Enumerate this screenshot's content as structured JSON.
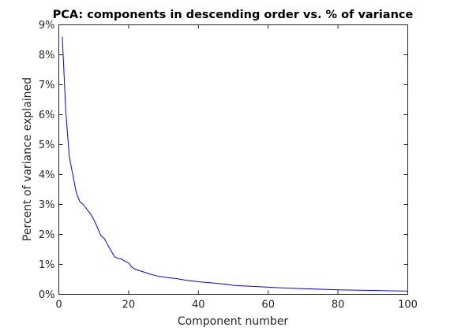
{
  "chart_data": {
    "type": "line",
    "title": "PCA: components in descending order vs. % of variance",
    "xlabel": "Component number",
    "ylabel": "Percent of variance explained",
    "xlim": [
      0,
      100
    ],
    "ylim": [
      0,
      9
    ],
    "xticks": [
      0,
      20,
      40,
      60,
      80,
      100
    ],
    "yticks": [
      0,
      1,
      2,
      3,
      4,
      5,
      6,
      7,
      8,
      9
    ],
    "ytick_suffix": "%",
    "grid": false,
    "line_color": "#0000ff",
    "series": [
      {
        "x": [
          1,
          2,
          3,
          4,
          5,
          6,
          7,
          8,
          9,
          10,
          11,
          12,
          13,
          14,
          15,
          16,
          17,
          18,
          19,
          20,
          21,
          22,
          24,
          26,
          28,
          30,
          32,
          34,
          36,
          38,
          40,
          42,
          44,
          46,
          48,
          50,
          55,
          60,
          65,
          70,
          75,
          80,
          85,
          90,
          95,
          100
        ],
        "values": [
          8.6,
          6.1,
          4.6,
          4.0,
          3.4,
          3.1,
          3.0,
          2.85,
          2.7,
          2.5,
          2.25,
          1.97,
          1.87,
          1.65,
          1.45,
          1.25,
          1.2,
          1.18,
          1.1,
          1.05,
          0.9,
          0.83,
          0.76,
          0.68,
          0.62,
          0.58,
          0.55,
          0.52,
          0.48,
          0.45,
          0.42,
          0.4,
          0.38,
          0.36,
          0.34,
          0.3,
          0.27,
          0.24,
          0.21,
          0.19,
          0.17,
          0.15,
          0.14,
          0.13,
          0.12,
          0.11
        ]
      }
    ]
  }
}
